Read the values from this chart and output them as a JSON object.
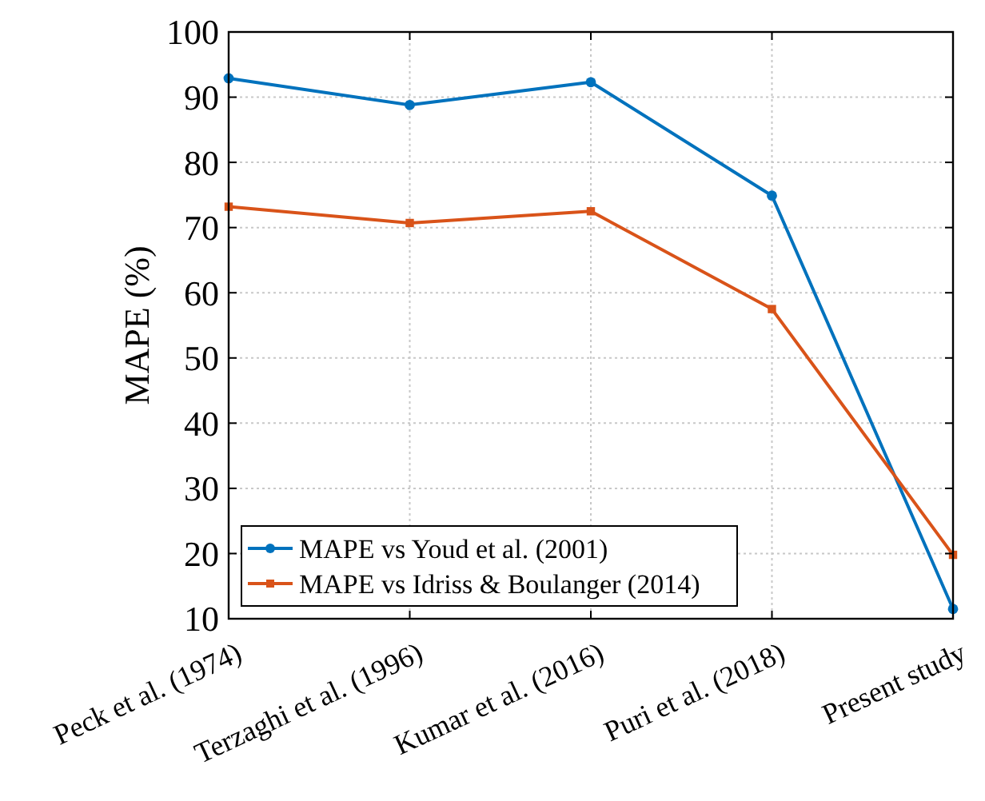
{
  "chart_data": {
    "type": "line",
    "ylabel": "MAPE (%)",
    "categories": [
      "Peck et al. (1974)",
      "Terzaghi et al. (1996)",
      "Kumar et al. (2016)",
      "Puri et al. (2018)",
      "Present study"
    ],
    "series": [
      {
        "name": "MAPE vs Youd et al. (2001)",
        "color": "#0072bd",
        "marker": "circle",
        "values": [
          92.9,
          88.8,
          92.3,
          74.9,
          11.5
        ]
      },
      {
        "name": "MAPE vs Idriss & Boulanger (2014)",
        "color": "#d95319",
        "marker": "square",
        "values": [
          73.2,
          70.7,
          72.5,
          57.5,
          19.8
        ]
      }
    ],
    "ylim": [
      10,
      100
    ],
    "yticks": [
      10,
      20,
      30,
      40,
      50,
      60,
      70,
      80,
      90,
      100
    ],
    "grid": true,
    "legend": "bottom left",
    "line_style": "solid"
  }
}
